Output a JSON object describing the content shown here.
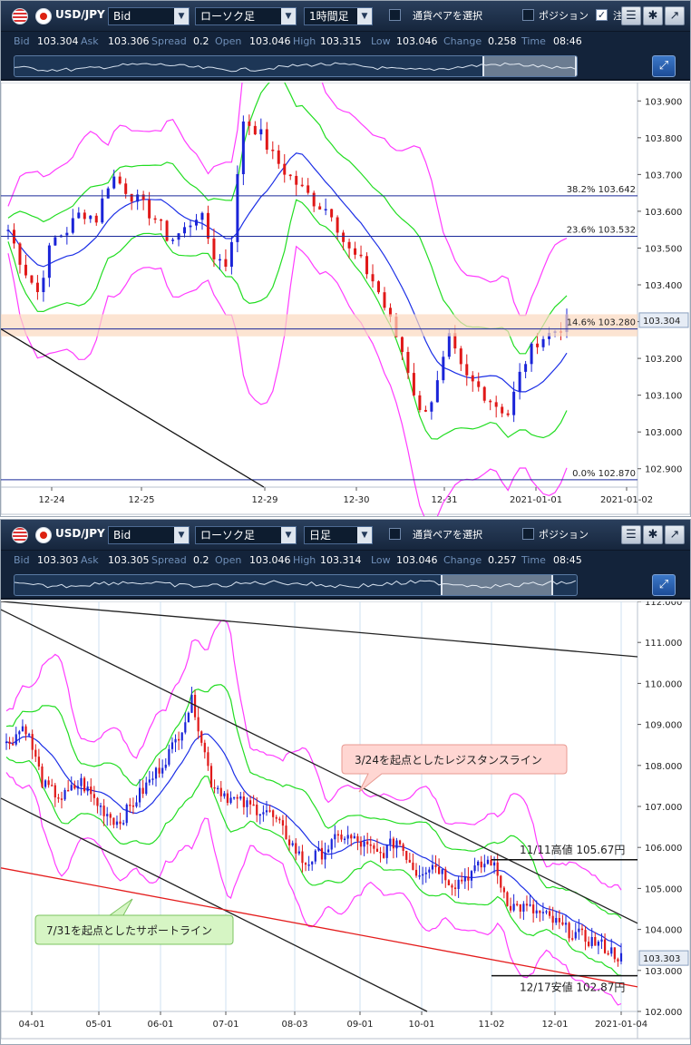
{
  "top": {
    "pair": "USD/JPY",
    "price_type": "Bid",
    "chart_type": "ローソク足",
    "timeframe": "1時間足",
    "select_pair_label": "通貨ペアを選択",
    "position_label": "ポジション",
    "order_label": "注",
    "quote": {
      "bid_label": "Bid",
      "bid": "103.304",
      "ask_label": "Ask",
      "ask": "103.306",
      "spread_label": "Spread",
      "spread": "0.2",
      "open_label": "Open",
      "open": "103.046",
      "high_label": "High",
      "high": "103.315",
      "low_label": "Low",
      "low": "103.046",
      "change_label": "Change",
      "change": "0.258",
      "time_label": "Time",
      "time": "08:46"
    },
    "y_ticks": [
      "103.900",
      "103.800",
      "103.700",
      "103.600",
      "103.500",
      "103.400",
      "103.300",
      "103.200",
      "103.100",
      "103.000",
      "102.900"
    ],
    "x_ticks": [
      "12-24",
      "12-25",
      "12-29",
      "12-30",
      "12-31",
      "2021-01-01",
      "2021-01-02"
    ],
    "fib_top": "38.2%  103.642",
    "fib_236": "23.6%  103.532",
    "fib_146": "14.6%  103.280",
    "fib_0": "0.0%  102.870",
    "current_price": "103.304"
  },
  "bottom": {
    "pair": "USD/JPY",
    "price_type": "Bid",
    "chart_type": "ローソク足",
    "timeframe": "日足",
    "select_pair_label": "通貨ペアを選択",
    "position_label": "ポジション",
    "quote": {
      "bid_label": "Bid",
      "bid": "103.303",
      "ask_label": "Ask",
      "ask": "103.305",
      "spread_label": "Spread",
      "spread": "0.2",
      "open_label": "Open",
      "open": "103.046",
      "high_label": "High",
      "high": "103.314",
      "low_label": "Low",
      "low": "103.046",
      "change_label": "Change",
      "change": "0.257",
      "time_label": "Time",
      "time": "08:45"
    },
    "y_ticks": [
      "112.000",
      "111.000",
      "110.000",
      "109.000",
      "108.000",
      "107.000",
      "106.000",
      "105.000",
      "104.000",
      "103.000",
      "102.000"
    ],
    "x_ticks": [
      "04-01",
      "05-01",
      "06-01",
      "07-01",
      "08-03",
      "09-01",
      "10-01",
      "11-02",
      "12-01",
      "2021-01-04"
    ],
    "resistance_note": "3/24を起点としたレジスタンスライン",
    "support_note": "7/31を起点としたサポートライン",
    "high_note": "11/11高値 105.67円",
    "low_note": "12/17安値 102.87円",
    "current_price": "103.303"
  },
  "chart_data": [
    {
      "type": "candlestick",
      "title": "USD/JPY 1時間足",
      "x_labels": [
        "12-24",
        "12-25",
        "12-29",
        "12-30",
        "12-31",
        "2021-01-01",
        "2021-01-02"
      ],
      "ylim": [
        102.85,
        103.95
      ],
      "indicators": [
        "Bollinger Bands (±1σ, ±2σ)",
        "moving average",
        "Fibonacci retracement"
      ],
      "fibonacci": [
        {
          "level": "38.2%",
          "value": 103.642
        },
        {
          "level": "23.6%",
          "value": 103.532
        },
        {
          "level": "14.6%",
          "value": 103.28
        },
        {
          "level": "0.0%",
          "value": 102.87
        }
      ],
      "close_path": [
        103.55,
        103.45,
        103.38,
        103.52,
        103.55,
        103.6,
        103.58,
        103.7,
        103.66,
        103.62,
        103.58,
        103.52,
        103.55,
        103.6,
        103.48,
        103.45,
        103.85,
        103.82,
        103.75,
        103.7,
        103.66,
        103.62,
        103.6,
        103.5,
        103.46,
        103.4,
        103.3,
        103.2,
        103.05,
        103.1,
        103.25,
        103.15,
        103.12,
        103.08,
        103.05,
        103.18,
        103.25,
        103.27,
        103.3
      ],
      "current": 103.304
    },
    {
      "type": "candlestick",
      "title": "USD/JPY 日足",
      "x_labels": [
        "04-01",
        "05-01",
        "06-01",
        "07-01",
        "08-03",
        "09-01",
        "10-01",
        "11-02",
        "12-01",
        "2021-01-04"
      ],
      "ylim": [
        102.0,
        112.0
      ],
      "indicators": [
        "Bollinger Bands (±1σ, ±2σ)",
        "moving average"
      ],
      "annotations": [
        {
          "text": "11/11高値",
          "value": 105.67
        },
        {
          "text": "12/17安値",
          "value": 102.87
        }
      ],
      "close_path": [
        108.5,
        109.0,
        107.5,
        107.2,
        107.6,
        107.0,
        106.6,
        107.2,
        107.8,
        108.5,
        109.6,
        107.6,
        107.2,
        107.0,
        106.9,
        106.3,
        105.6,
        105.9,
        106.3,
        106.1,
        105.8,
        106.2,
        105.4,
        105.6,
        105.1,
        105.4,
        105.7,
        104.6,
        104.5,
        104.3,
        104.0,
        103.8,
        103.6,
        103.3
      ],
      "current": 103.303
    }
  ]
}
